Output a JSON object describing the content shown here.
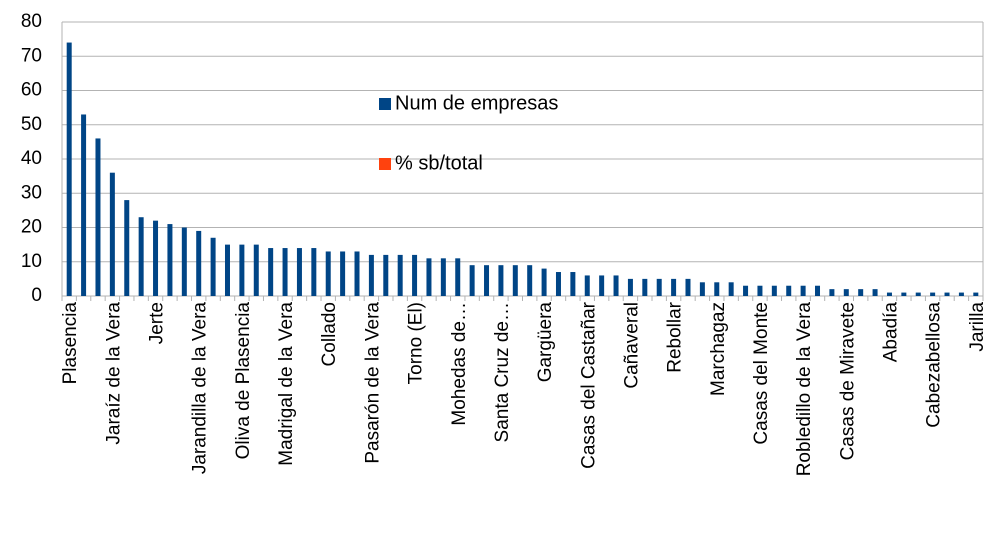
{
  "chart_data": {
    "type": "bar",
    "categories": [
      "Plasencia",
      null,
      null,
      "Jaraíz de la Vera",
      null,
      null,
      "Jerte",
      null,
      null,
      "Jarandilla de la Vera",
      null,
      null,
      "Oliva de Plasencia",
      null,
      null,
      "Madrigal de la Vera",
      null,
      null,
      "Collado",
      null,
      null,
      "Pasarón de la Vera",
      null,
      null,
      "Torno (El)",
      null,
      null,
      "Mohedas de…",
      null,
      null,
      "Santa Cruz de…",
      null,
      null,
      "Gargüera",
      null,
      null,
      "Casas del Castañar",
      null,
      null,
      "Cañaveral",
      null,
      null,
      "Rebollar",
      null,
      null,
      "Marchagaz",
      null,
      null,
      "Casas del Monte",
      null,
      null,
      "Robledillo de la Vera",
      null,
      null,
      "Casas de Miravete",
      null,
      null,
      "Abadía",
      null,
      null,
      "Cabezabellosa",
      null,
      null,
      "Jarilla"
    ],
    "series": [
      {
        "name": "Num de empresas",
        "color": "#004586",
        "values": [
          74,
          53,
          46,
          36,
          28,
          23,
          22,
          21,
          20,
          19,
          17,
          15,
          15,
          15,
          14,
          14,
          14,
          14,
          13,
          13,
          13,
          12,
          12,
          12,
          12,
          11,
          11,
          11,
          9,
          9,
          9,
          9,
          9,
          8,
          7,
          7,
          6,
          6,
          6,
          5,
          5,
          5,
          5,
          5,
          4,
          4,
          4,
          3,
          3,
          3,
          3,
          3,
          3,
          2,
          2,
          2,
          2,
          1,
          1,
          1,
          1,
          1,
          1,
          1
        ]
      },
      {
        "name": "% sb/total",
        "color": "#ff420e",
        "values": [
          null,
          null,
          null,
          null,
          null,
          null,
          null,
          null,
          null,
          null,
          null,
          null,
          null,
          null,
          null,
          null,
          null,
          null,
          null,
          null,
          null,
          null,
          null,
          null,
          null,
          null,
          null,
          null,
          null,
          null,
          null,
          null,
          null,
          null,
          null,
          null,
          null,
          null,
          null,
          null,
          null,
          null,
          null,
          null,
          null,
          null,
          null,
          null,
          null,
          null,
          null,
          null,
          null,
          null,
          null,
          null,
          null,
          null,
          null,
          null,
          null,
          null,
          null,
          null
        ]
      }
    ],
    "ylim": [
      0,
      80
    ],
    "yticks": [
      0,
      10,
      20,
      30,
      40,
      50,
      60,
      70,
      80
    ],
    "grid": true
  }
}
